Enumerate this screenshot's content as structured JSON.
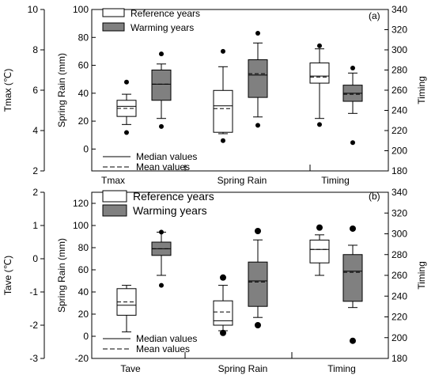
{
  "chart_data": [
    {
      "type": "box",
      "panel_label": "(a)",
      "categories": [
        "Tmax",
        "Spring Rain",
        "Timing"
      ],
      "left_outer_axis": {
        "label": "Tmax (℃)",
        "ticks": [
          2,
          4,
          6,
          8,
          10
        ],
        "range": [
          2,
          10
        ]
      },
      "left_inner_axis": {
        "label": "Spring Rain (mm)",
        "ticks": [
          0,
          20,
          40,
          60,
          80,
          100
        ],
        "range": [
          -10,
          100
        ]
      },
      "right_axis": {
        "label": "Timing",
        "ticks": [
          180,
          200,
          220,
          240,
          260,
          280,
          300,
          320,
          340
        ],
        "range": [
          180,
          340
        ]
      },
      "legend": [
        {
          "name": "Reference years",
          "color": "#ffffff"
        },
        {
          "name": "Warming years",
          "color": "#808080"
        }
      ],
      "line_legend": [
        "Median values",
        "Mean values"
      ],
      "series": [
        {
          "name": "Reference years",
          "values": [
            {
              "axis": "left_outer",
              "whisker_low": 4.3,
              "q1": 4.7,
              "median": 5.2,
              "mean": 5.1,
              "q3": 5.5,
              "whisker_high": 5.8,
              "outliers": [
                3.9,
                6.4
              ]
            },
            {
              "axis": "left_inner",
              "whisker_low": 11,
              "q1": 12,
              "median": 31,
              "mean": 29,
              "q3": 42,
              "whisker_high": 59,
              "outliers": [
                6,
                70
              ]
            },
            {
              "axis": "right",
              "whisker_low": 232,
              "q1": 267,
              "median": 274,
              "mean": 273,
              "q3": 287,
              "whisker_high": 301,
              "outliers": [
                226,
                304
              ]
            }
          ]
        },
        {
          "name": "Warming years",
          "values": [
            {
              "axis": "left_outer",
              "whisker_low": 4.6,
              "q1": 5.5,
              "median": 6.3,
              "mean": 6.3,
              "q3": 7.0,
              "whisker_high": 7.3,
              "outliers": [
                4.2,
                7.8
              ]
            },
            {
              "axis": "left_inner",
              "whisker_low": 23,
              "q1": 37,
              "median": 53,
              "mean": 54,
              "q3": 64,
              "whisker_high": 76,
              "outliers": [
                17,
                83
              ]
            },
            {
              "axis": "right",
              "whisker_low": 237,
              "q1": 249,
              "median": 257,
              "mean": 256,
              "q3": 265,
              "whisker_high": 277,
              "outliers": [
                208,
                282
              ]
            }
          ]
        }
      ]
    },
    {
      "type": "box",
      "panel_label": "(b)",
      "categories": [
        "Tave",
        "Spring Rain",
        "Timing"
      ],
      "left_outer_axis": {
        "label": "Tave (℃)",
        "ticks": [
          -3,
          -2,
          -1,
          0,
          1,
          2
        ],
        "range": [
          -3,
          2
        ]
      },
      "left_inner_axis": {
        "label": "Spring Rain (mm)",
        "ticks": [
          -20,
          0,
          20,
          40,
          60,
          80,
          100,
          120
        ],
        "range": [
          -20,
          130
        ]
      },
      "right_axis": {
        "label": "Timing",
        "ticks": [
          180,
          200,
          220,
          240,
          260,
          280,
          300,
          320,
          340
        ],
        "range": [
          180,
          340
        ]
      },
      "legend": [
        {
          "name": "Reference years",
          "color": "#ffffff"
        },
        {
          "name": "Warming years",
          "color": "#808080"
        }
      ],
      "line_legend": [
        "Median values",
        "Mean values"
      ],
      "series": [
        {
          "name": "Reference years",
          "values": [
            {
              "axis": "left_outer",
              "whisker_low": -2.2,
              "q1": -1.7,
              "median": -1.4,
              "mean": -1.3,
              "q3": -0.9,
              "whisker_high": -0.8,
              "outliers": []
            },
            {
              "axis": "left_inner",
              "whisker_low": 5,
              "q1": 10,
              "median": 14,
              "mean": 22,
              "q3": 32,
              "whisker_high": 46,
              "outliers": [
                3,
                53
              ]
            },
            {
              "axis": "right",
              "whisker_low": 260,
              "q1": 272,
              "median": 285,
              "mean": 285,
              "q3": 294,
              "whisker_high": 299,
              "outliers": [
                306
              ]
            }
          ]
        },
        {
          "name": "Warming years",
          "values": [
            {
              "axis": "left_outer",
              "whisker_low": -0.5,
              "q1": 0.1,
              "median": 0.3,
              "mean": 0.3,
              "q3": 0.5,
              "whisker_high": 0.8,
              "outliers": [
                -0.8,
                0.8
              ]
            },
            {
              "axis": "left_inner",
              "whisker_low": 17,
              "q1": 27,
              "median": 50,
              "mean": 49,
              "q3": 67,
              "whisker_high": 87,
              "outliers": [
                10,
                95
              ]
            },
            {
              "axis": "right",
              "whisker_low": 229,
              "q1": 235,
              "median": 264,
              "mean": 263,
              "q3": 280,
              "whisker_high": 289,
              "outliers": [
                197,
                305
              ]
            }
          ]
        }
      ]
    }
  ]
}
